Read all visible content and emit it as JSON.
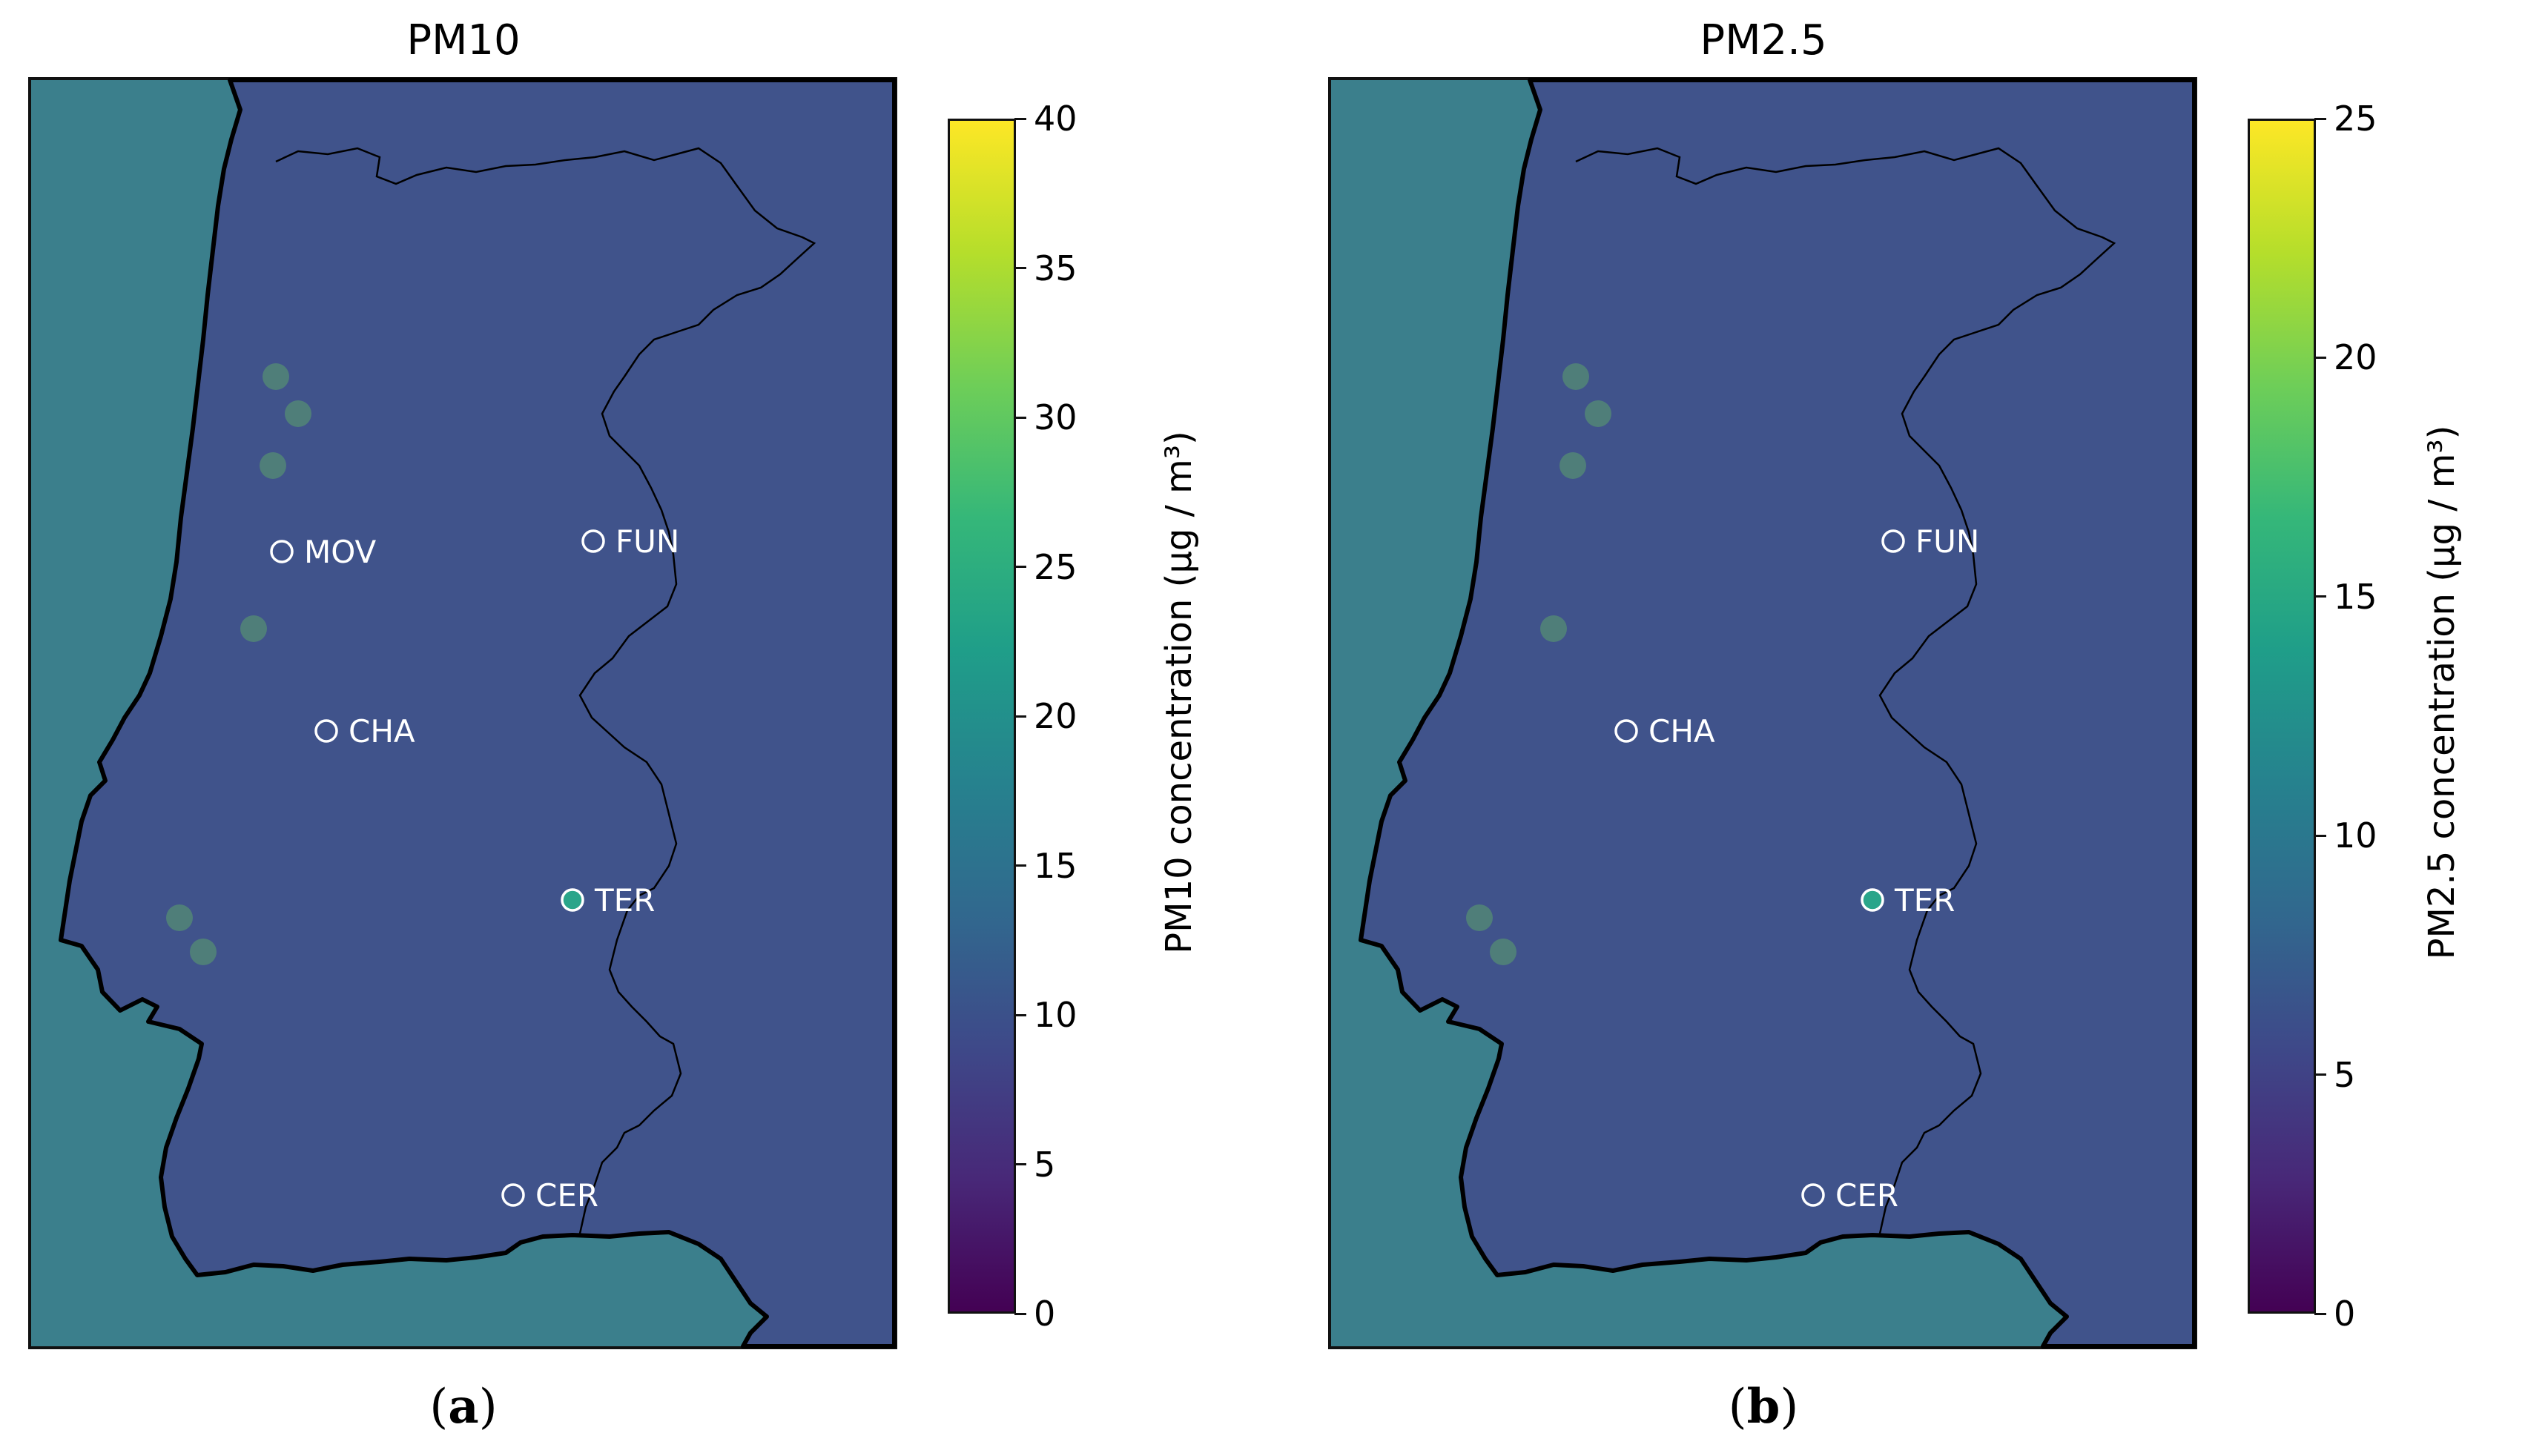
{
  "chart_data": [
    {
      "type": "heatmap",
      "panel_id": "a",
      "title": "PM10",
      "colorbar_label": "PM10 concentration (µg / m³)",
      "colorbar_range": [
        0,
        40
      ],
      "colorbar_ticks": [
        "0",
        "5",
        "10",
        "15",
        "20",
        "25",
        "30",
        "35",
        "40"
      ],
      "colormap": "viridis",
      "stations": [
        {
          "name": "MOV",
          "filled": false
        },
        {
          "name": "FUN",
          "filled": false
        },
        {
          "name": "CHA",
          "filled": false
        },
        {
          "name": "TER",
          "filled": true
        },
        {
          "name": "CER",
          "filled": false
        }
      ],
      "caption_letter": "a"
    },
    {
      "type": "heatmap",
      "panel_id": "b",
      "title": "PM2.5",
      "colorbar_label": "PM2.5 concentration (µg / m³)",
      "colorbar_range": [
        0,
        25
      ],
      "colorbar_ticks": [
        "0",
        "5",
        "10",
        "15",
        "20",
        "25"
      ],
      "colormap": "viridis",
      "stations": [
        {
          "name": "FUN",
          "filled": false
        },
        {
          "name": "CHA",
          "filled": false
        },
        {
          "name": "TER",
          "filled": true
        },
        {
          "name": "CER",
          "filled": false
        }
      ],
      "caption_letter": "b"
    }
  ],
  "colors": {
    "sea": "#3b7f8c",
    "land": "#40538b",
    "station_fill": "#2aa58a"
  }
}
